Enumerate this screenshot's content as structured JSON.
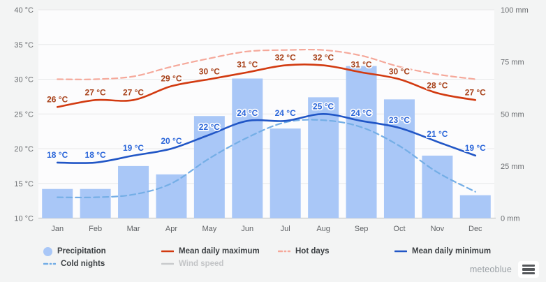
{
  "chart_data": {
    "type": "bar",
    "subtype": "climate-combo-bar-line",
    "months": [
      "Jan",
      "Feb",
      "Mar",
      "Apr",
      "May",
      "Jun",
      "Jul",
      "Aug",
      "Sep",
      "Oct",
      "Nov",
      "Dec"
    ],
    "y_left": {
      "unit": "°C",
      "min": 10,
      "max": 40,
      "ticks": [
        40,
        35,
        30,
        25,
        20,
        15,
        10
      ]
    },
    "y_right": {
      "unit": "mm",
      "min": 0,
      "max": 100,
      "ticks": [
        100,
        75,
        50,
        25,
        0
      ]
    },
    "grid": "horizontal",
    "series": [
      {
        "name": "Precipitation",
        "type": "bar",
        "axis": "right",
        "unit": "mm",
        "color": "#a9c7f7",
        "values": [
          14,
          14,
          25,
          21,
          49,
          67,
          43,
          58,
          73,
          57,
          30,
          11
        ]
      },
      {
        "name": "Hot days",
        "type": "line",
        "style": "dashed",
        "axis": "left",
        "unit": "°C",
        "color": "#f5a89a",
        "labeled": false,
        "values": [
          30,
          30,
          30.4,
          31.8,
          33,
          34,
          34.2,
          34.2,
          33.4,
          31.8,
          30.7,
          30
        ]
      },
      {
        "name": "Cold nights",
        "type": "line",
        "style": "dashed",
        "axis": "left",
        "unit": "°C",
        "color": "#74aee6",
        "labeled": false,
        "values": [
          13,
          13,
          13.4,
          15,
          18.6,
          21.6,
          23.8,
          24.1,
          23.1,
          20.4,
          16.6,
          13.8
        ]
      },
      {
        "name": "Mean daily maximum",
        "type": "line",
        "style": "solid",
        "axis": "left",
        "unit": "°C",
        "color": "#d23a10",
        "label_color": "#a8431c",
        "labeled": true,
        "values": [
          26,
          27,
          27,
          29,
          30,
          31,
          32,
          32,
          31,
          30,
          28,
          27
        ]
      },
      {
        "name": "Mean daily minimum",
        "type": "line",
        "style": "solid",
        "axis": "left",
        "unit": "°C",
        "color": "#2156c6",
        "label_color": "#2b66d9",
        "labeled": true,
        "values": [
          18,
          18,
          19,
          20,
          22,
          24,
          24,
          25,
          24,
          23,
          21,
          19
        ]
      },
      {
        "name": "Wind speed",
        "type": "line",
        "style": "solid",
        "axis": "left",
        "color": "#c5c7c9",
        "hidden": true
      }
    ]
  },
  "legend": {
    "items": [
      {
        "label": "Precipitation",
        "marker": "circle",
        "color": "#a9c7f7",
        "disabled": false
      },
      {
        "label": "Mean daily maximum",
        "marker": "line",
        "color": "#d23a10",
        "disabled": false
      },
      {
        "label": "Hot days",
        "marker": "dashed-line",
        "color": "#f5a89a",
        "disabled": false
      },
      {
        "label": "Mean daily minimum",
        "marker": "line",
        "color": "#2156c6",
        "disabled": false
      },
      {
        "label": "Cold nights",
        "marker": "dashed-line",
        "color": "#74aee6",
        "disabled": false
      },
      {
        "label": "Wind speed",
        "marker": "line",
        "color": "#c9cbcd",
        "disabled": true
      }
    ]
  },
  "footer": {
    "brand": "meteoblue"
  },
  "colors": {
    "page_bg": "#f3f4f4",
    "plot_bg": "#fcfcfd",
    "gridline": "#e7e8e9",
    "axis_line": "#c8cacc",
    "axis_text": "#6a6d70"
  }
}
